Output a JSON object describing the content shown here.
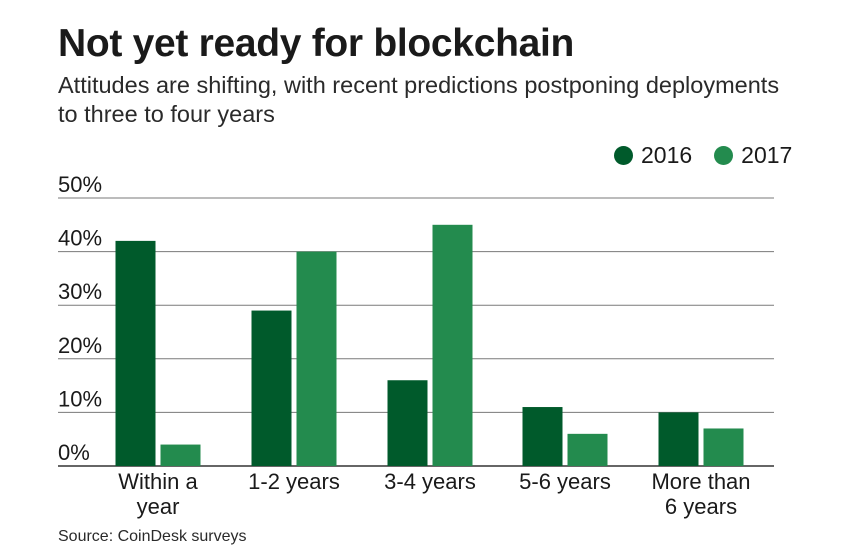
{
  "title": "Not yet ready for blockchain",
  "subtitle": "Attitudes are shifting, with recent predictions postponing deployments to three to four years",
  "source": "Source: CoinDesk surveys",
  "colors": {
    "s2016": "#005a2b",
    "s2017": "#238b4e",
    "grid": "#7a7a7a",
    "text": "#1a1a1a"
  },
  "chart_data": {
    "type": "bar",
    "title": "Not yet ready for blockchain",
    "xlabel": "",
    "ylabel": "",
    "ylim": [
      0,
      50
    ],
    "yticks": [
      0,
      10,
      20,
      30,
      40,
      50
    ],
    "ytick_labels": [
      "0%",
      "10%",
      "20%",
      "30%",
      "40%",
      "50%"
    ],
    "grid": true,
    "legend": "top-right",
    "categories": [
      "Within a year",
      "1-2 years",
      "3-4 years",
      "5-6 years",
      "More than 6 years"
    ],
    "category_lines": [
      [
        "Within a",
        "year"
      ],
      [
        "1-2 years"
      ],
      [
        "3-4 years"
      ],
      [
        "5-6 years"
      ],
      [
        "More than",
        "6 years"
      ]
    ],
    "series": [
      {
        "name": "2016",
        "values": [
          42,
          29,
          16,
          11,
          10
        ]
      },
      {
        "name": "2017",
        "values": [
          4,
          40,
          45,
          6,
          7
        ]
      }
    ]
  }
}
